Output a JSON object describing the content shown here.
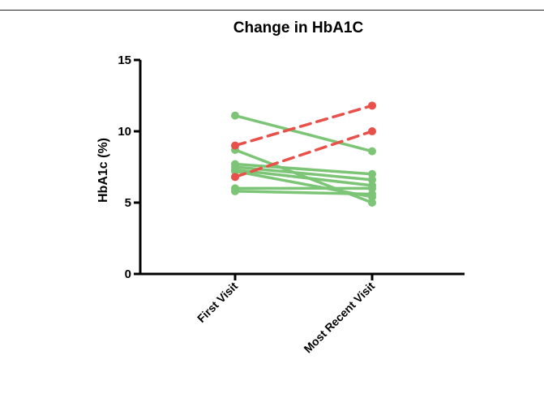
{
  "chart_data": {
    "type": "line",
    "title": "Change in HbA1C",
    "xlabel": "",
    "ylabel": "HbA1c (%)",
    "categories": [
      "First Visit",
      "Most Recent Visit"
    ],
    "ylim": [
      0,
      15
    ],
    "yticks": [
      "0",
      "5",
      "10",
      "15"
    ],
    "grid": false,
    "legend": "none",
    "colors": {
      "decrease": "#7cc576",
      "increase": "#e8504a"
    },
    "series": [
      {
        "values": [
          11.1,
          8.6
        ],
        "style": "solid",
        "color": "#7cc576"
      },
      {
        "values": [
          8.7,
          5.0
        ],
        "style": "solid",
        "color": "#7cc576"
      },
      {
        "values": [
          7.7,
          7.0
        ],
        "style": "solid",
        "color": "#7cc576"
      },
      {
        "values": [
          7.5,
          6.6
        ],
        "style": "solid",
        "color": "#7cc576"
      },
      {
        "values": [
          7.3,
          6.2
        ],
        "style": "solid",
        "color": "#7cc576"
      },
      {
        "values": [
          7.2,
          5.4
        ],
        "style": "solid",
        "color": "#7cc576"
      },
      {
        "values": [
          6.0,
          6.0
        ],
        "style": "solid",
        "color": "#7cc576"
      },
      {
        "values": [
          5.8,
          5.6
        ],
        "style": "solid",
        "color": "#7cc576"
      },
      {
        "values": [
          9.0,
          11.8
        ],
        "style": "dashed",
        "color": "#e8504a"
      },
      {
        "values": [
          6.8,
          10.0
        ],
        "style": "dashed",
        "color": "#e8504a"
      }
    ]
  }
}
